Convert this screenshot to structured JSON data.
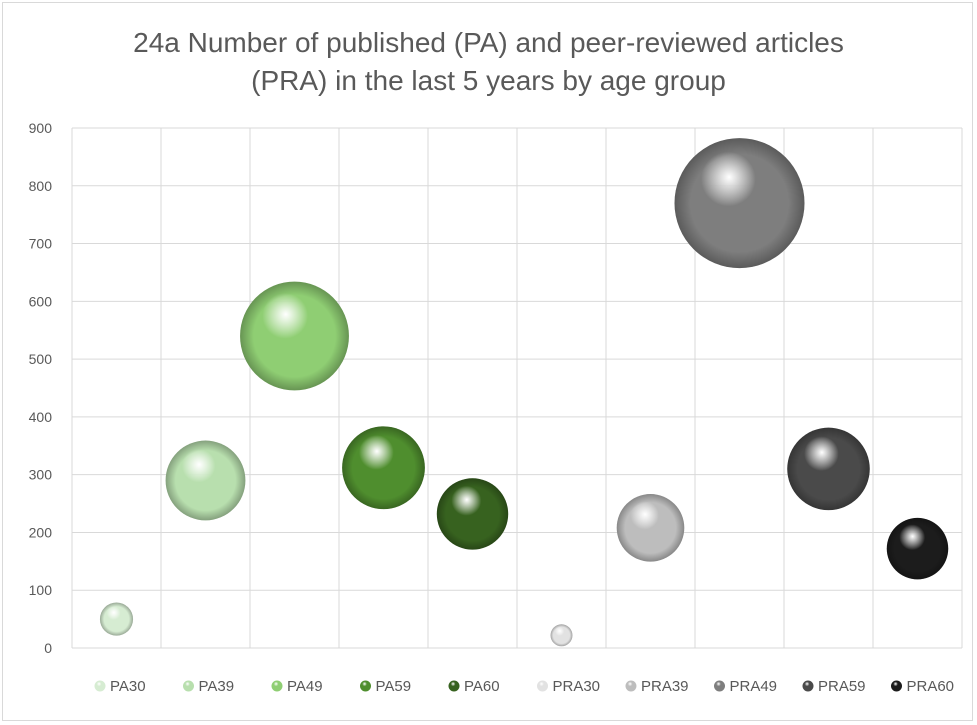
{
  "chart_data": {
    "type": "bubble",
    "title": "24a Number of published (PA) and peer-reviewed articles (PRA) in the last 5 years by age group",
    "title_lines": [
      "24a Number of published (PA) and peer-reviewed articles",
      "(PRA) in the last 5 years by age group"
    ],
    "xlabel": "",
    "ylabel": "",
    "ylim": [
      0,
      900
    ],
    "yticks": [
      0,
      100,
      200,
      300,
      400,
      500,
      600,
      700,
      800,
      900
    ],
    "grid": true,
    "legend_position": "bottom",
    "series": [
      {
        "name": "PA30",
        "x": 1,
        "y": 50,
        "size": 50,
        "color": "#d6ecd2"
      },
      {
        "name": "PA39",
        "x": 2,
        "y": 290,
        "size": 290,
        "color": "#b8dfae"
      },
      {
        "name": "PA49",
        "x": 3,
        "y": 540,
        "size": 540,
        "color": "#8fce73"
      },
      {
        "name": "PA59",
        "x": 4,
        "y": 312,
        "size": 312,
        "color": "#4f8e2e"
      },
      {
        "name": "PA60",
        "x": 5,
        "y": 232,
        "size": 232,
        "color": "#37621f"
      },
      {
        "name": "PRA30",
        "x": 6,
        "y": 22,
        "size": 22,
        "color": "#e2e2e2"
      },
      {
        "name": "PRA39",
        "x": 7,
        "y": 208,
        "size": 208,
        "color": "#bdbdbd"
      },
      {
        "name": "PRA49",
        "x": 8,
        "y": 770,
        "size": 770,
        "color": "#7e7e7e"
      },
      {
        "name": "PRA59",
        "x": 9,
        "y": 310,
        "size": 310,
        "color": "#4a4a4a"
      },
      {
        "name": "PRA60",
        "x": 10,
        "y": 172,
        "size": 172,
        "color": "#1c1c1c"
      }
    ]
  }
}
